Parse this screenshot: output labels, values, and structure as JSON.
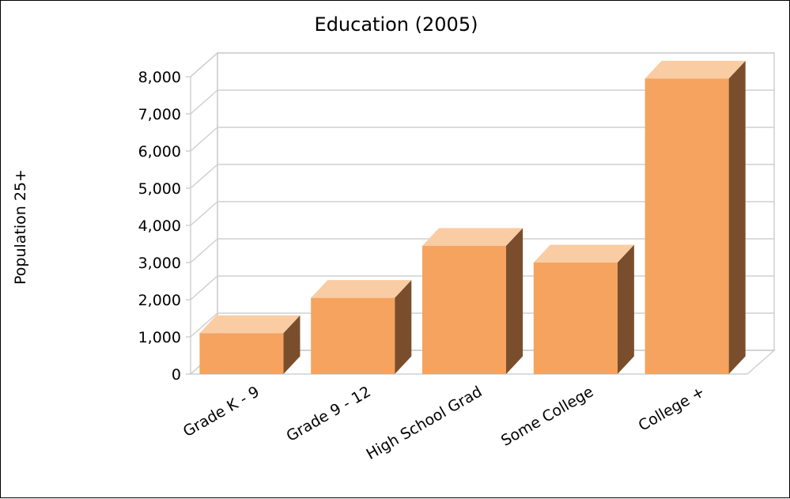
{
  "chart_data": {
    "type": "bar",
    "title": "Education (2005)",
    "xlabel": "",
    "ylabel": "Population 25+",
    "categories": [
      "Grade K - 9",
      "Grade 9 - 12",
      "High School Grad",
      "Some College",
      "College +"
    ],
    "values": [
      1100,
      2050,
      3450,
      3000,
      7950
    ],
    "ylim": [
      0,
      8000
    ],
    "yticks": [
      "0",
      "1,000",
      "2,000",
      "3,000",
      "4,000",
      "5,000",
      "6,000",
      "7,000",
      "8,000"
    ],
    "grid": true,
    "style": "3d",
    "colors": {
      "front": "#F5A35E",
      "top": "#F9CCA4",
      "side": "#7A4E2C",
      "grid": "#D0D0D0"
    }
  }
}
